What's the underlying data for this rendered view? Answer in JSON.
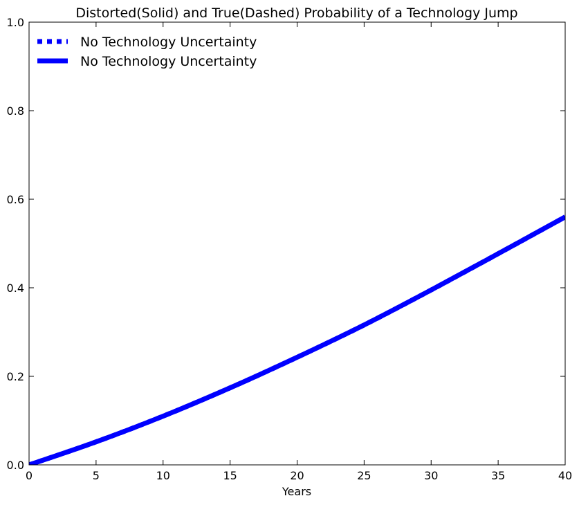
{
  "chart_data": {
    "type": "line",
    "title": "Distorted(Solid) and True(Dashed) Probability of a Technology Jump",
    "xlabel": "Years",
    "ylabel": "",
    "xlim": [
      0,
      40
    ],
    "ylim": [
      0,
      1
    ],
    "xticks": [
      "0",
      "5",
      "10",
      "15",
      "20",
      "25",
      "30",
      "35",
      "40"
    ],
    "yticks": [
      "0.0",
      "0.2",
      "0.4",
      "0.6",
      "0.8",
      "1.0"
    ],
    "grid": false,
    "legend_position": "top-left",
    "series": [
      {
        "name": "No Technology Uncertainty",
        "style": "dashed",
        "color": "#0000ff",
        "x": [
          0,
          5,
          10,
          15,
          20,
          25,
          30,
          35,
          40
        ],
        "values": [
          0,
          0.052,
          0.11,
          0.174,
          0.243,
          0.316,
          0.395,
          0.477,
          0.56
        ]
      },
      {
        "name": "No Technology Uncertainty",
        "style": "solid",
        "color": "#0000ff",
        "x": [
          0,
          5,
          10,
          15,
          20,
          25,
          30,
          35,
          40
        ],
        "values": [
          0,
          0.052,
          0.11,
          0.174,
          0.243,
          0.316,
          0.395,
          0.477,
          0.56
        ]
      }
    ]
  }
}
